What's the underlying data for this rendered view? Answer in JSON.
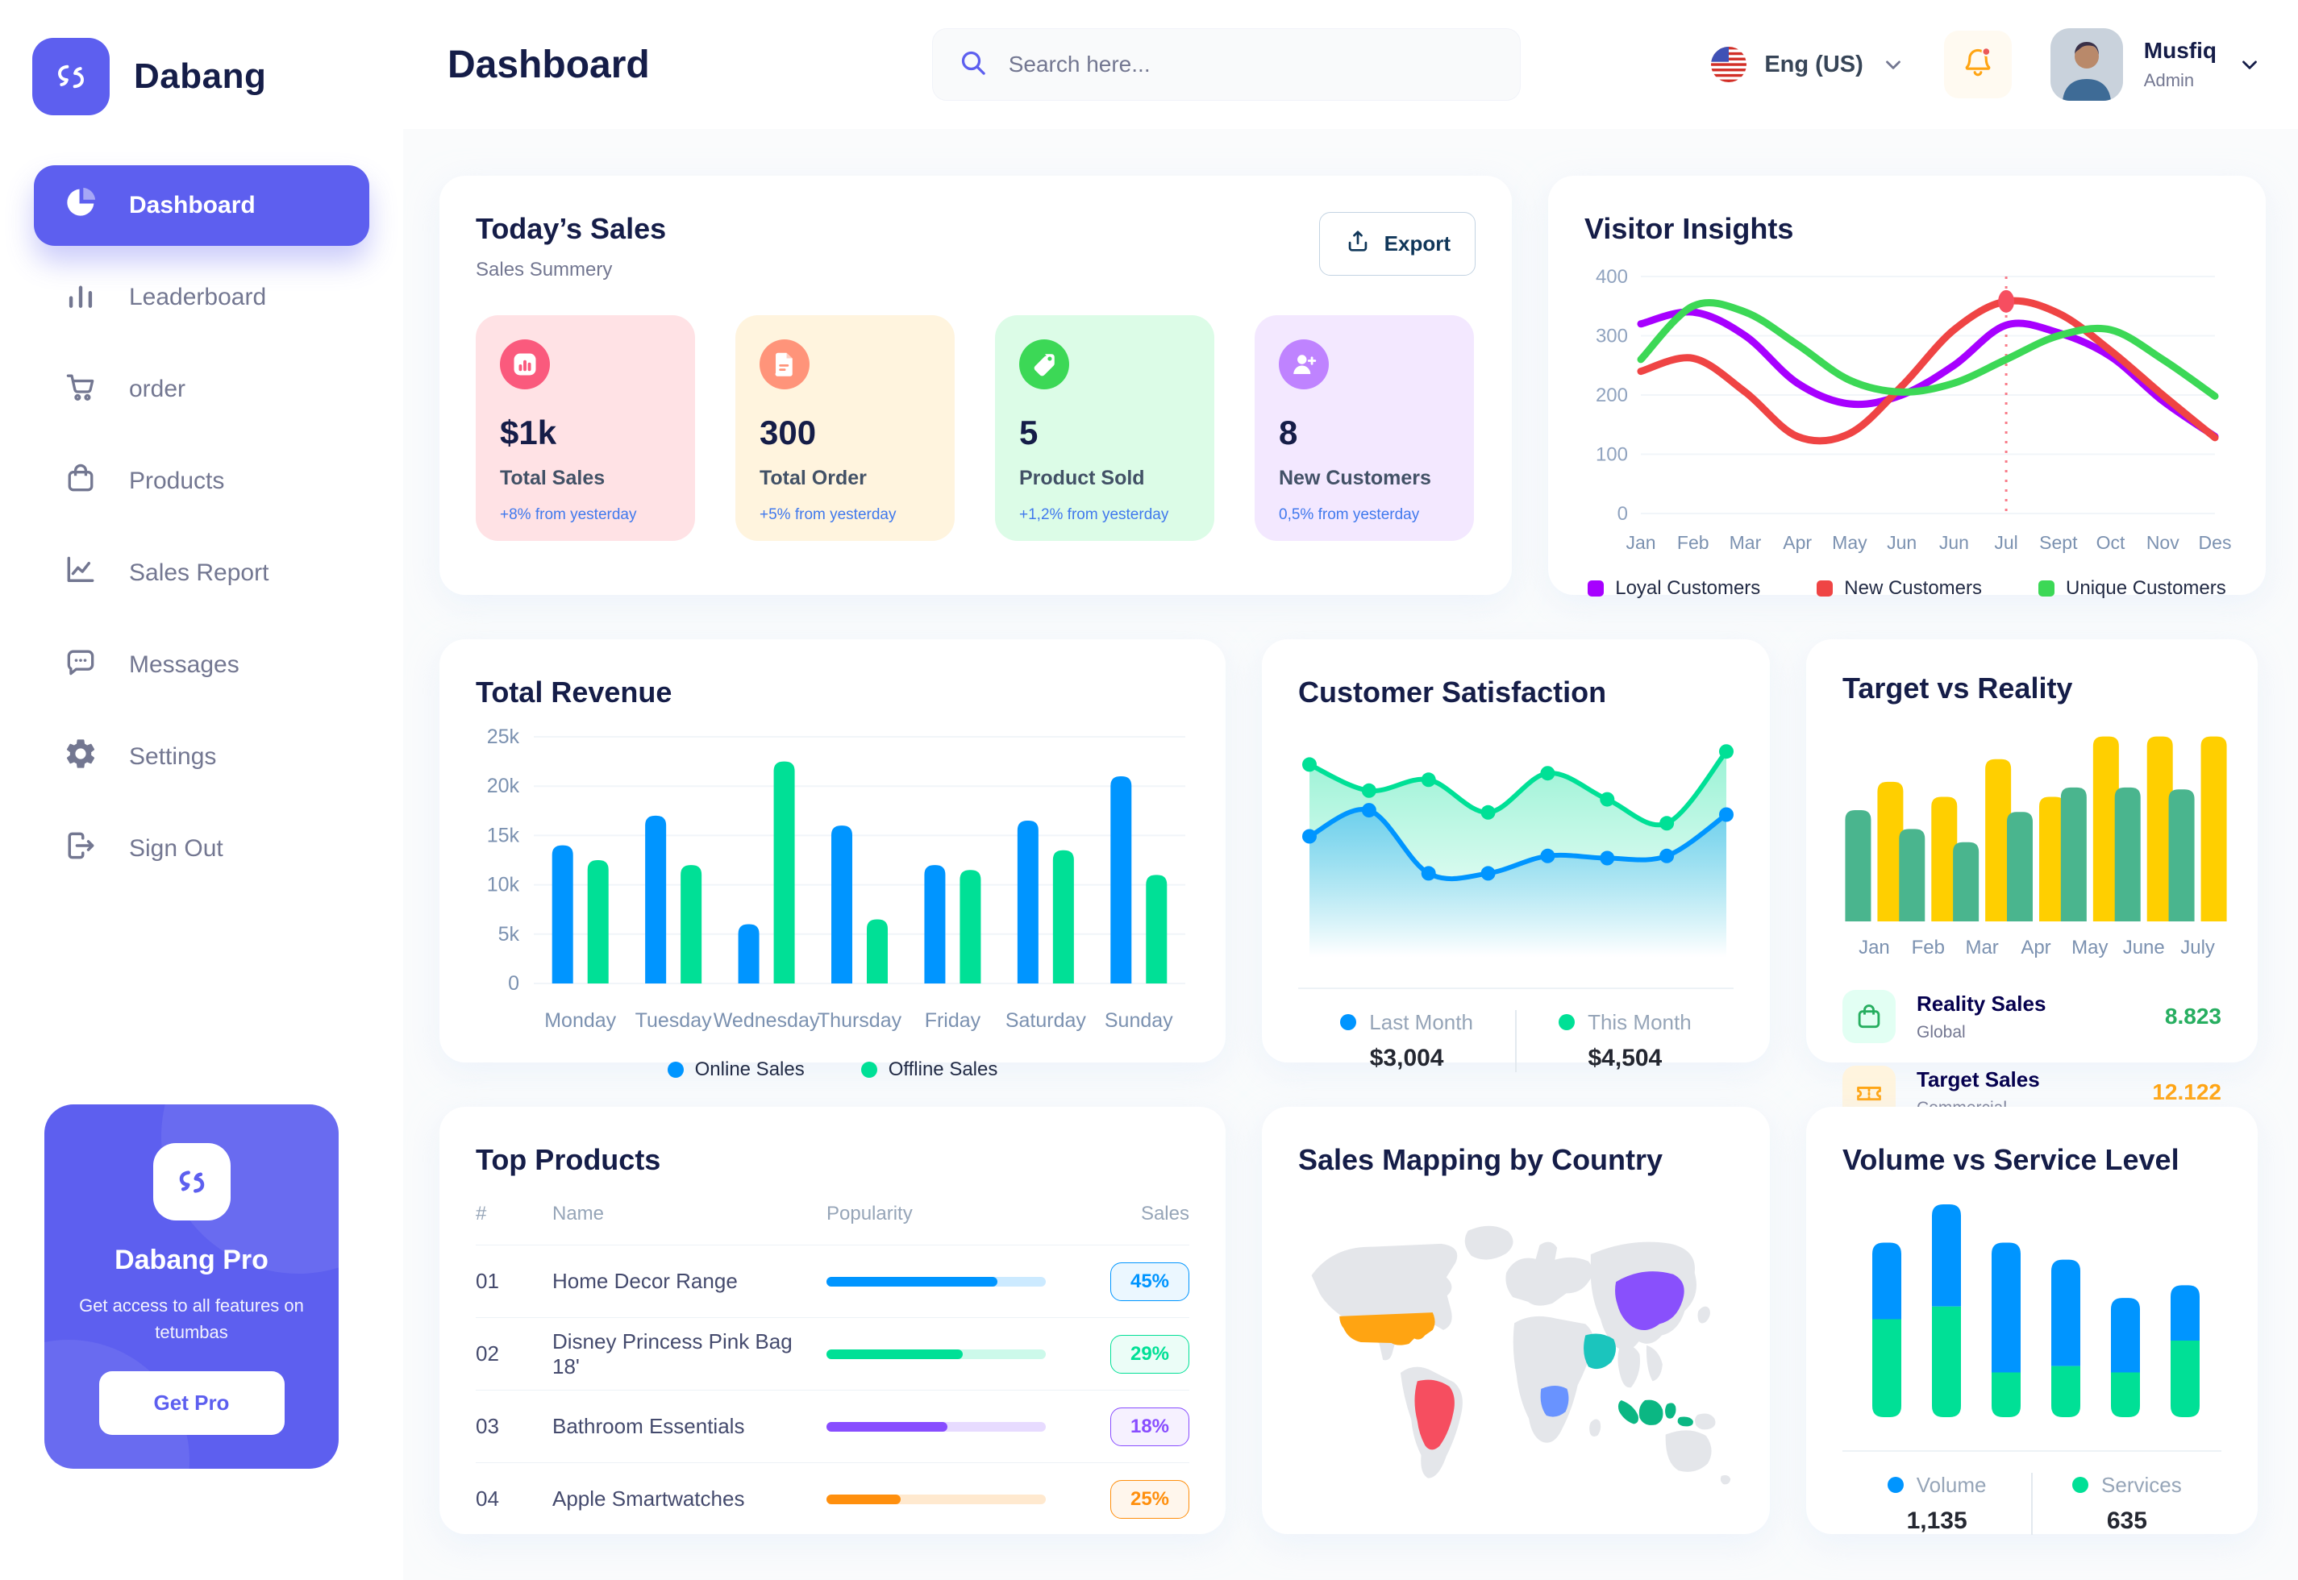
{
  "brand": {
    "name": "Dabang",
    "pro_title": "Dabang Pro",
    "pro_subtitle": "Get access to all features on tetumbas",
    "pro_cta": "Get Pro"
  },
  "header": {
    "title": "Dashboard",
    "search_placeholder": "Search here...",
    "language": "Eng (US)",
    "user_name": "Musfiq",
    "user_role": "Admin"
  },
  "sidebar": {
    "items": [
      {
        "label": "Dashboard",
        "icon": "dashboard",
        "active": true
      },
      {
        "label": "Leaderboard",
        "icon": "leaderboard",
        "active": false
      },
      {
        "label": "order",
        "icon": "cart",
        "active": false
      },
      {
        "label": "Products",
        "icon": "bag",
        "active": false
      },
      {
        "label": "Sales Report",
        "icon": "chart-line",
        "active": false
      },
      {
        "label": "Messages",
        "icon": "message",
        "active": false
      },
      {
        "label": "Settings",
        "icon": "gear",
        "active": false
      },
      {
        "label": "Sign Out",
        "icon": "signout",
        "active": false
      }
    ]
  },
  "today_sales": {
    "title": "Today’s Sales",
    "subtitle": "Sales Summery",
    "export_label": "Export",
    "cards": [
      {
        "value": "$1k",
        "label": "Total Sales",
        "delta": "+8% from yesterday",
        "bg": "#FFE2E5",
        "icon_bg": "#FA5A7D",
        "icon": "bar"
      },
      {
        "value": "300",
        "label": "Total Order",
        "delta": "+5% from yesterday",
        "bg": "#FFF4DE",
        "icon_bg": "#FF947A",
        "icon": "file"
      },
      {
        "value": "5",
        "label": "Product Sold",
        "delta": "+1,2% from yesterday",
        "bg": "#DCFCE7",
        "icon_bg": "#3CD856",
        "icon": "tag"
      },
      {
        "value": "8",
        "label": "New Customers",
        "delta": "0,5% from yesterday",
        "bg": "#F3E8FF",
        "icon_bg": "#BF83FF",
        "icon": "person"
      }
    ]
  },
  "chart_data": {
    "visitor_insights": {
      "type": "line",
      "title": "Visitor Insights",
      "x": [
        "Jan",
        "Feb",
        "Mar",
        "Apr",
        "May",
        "Jun",
        "Jun",
        "Jul",
        "Sept",
        "Oct",
        "Nov",
        "Des"
      ],
      "ylim": [
        0,
        400
      ],
      "yticks": [
        0,
        100,
        200,
        300,
        400
      ],
      "series": [
        {
          "name": "Loyal Customers",
          "color": "#A700FF",
          "values": [
            320,
            340,
            300,
            220,
            185,
            200,
            250,
            318,
            305,
            265,
            190,
            130
          ]
        },
        {
          "name": "New Customers",
          "color": "#EF4444",
          "values": [
            240,
            262,
            205,
            130,
            135,
            215,
            310,
            358,
            338,
            275,
            200,
            128
          ]
        },
        {
          "name": "Unique Customers",
          "color": "#3CD856",
          "values": [
            260,
            350,
            340,
            285,
            225,
            205,
            220,
            260,
            300,
            310,
            260,
            198
          ]
        }
      ],
      "marker": {
        "series": "New Customers",
        "index": 7,
        "color": "#F64E60"
      }
    },
    "total_revenue": {
      "type": "bar",
      "title": "Total Revenue",
      "categories": [
        "Monday",
        "Tuesday",
        "Wednesday",
        "Thursday",
        "Friday",
        "Saturday",
        "Sunday"
      ],
      "ylim": [
        0,
        25000
      ],
      "yticks": [
        "0",
        "5k",
        "10k",
        "15k",
        "20k",
        "25k"
      ],
      "series": [
        {
          "name": "Online Sales",
          "color": "#0095FF",
          "values": [
            14000,
            17000,
            6000,
            16000,
            12000,
            16500,
            21000
          ]
        },
        {
          "name": "Offline Sales",
          "color": "#00E096",
          "values": [
            12500,
            12000,
            22500,
            6500,
            11500,
            13500,
            11000
          ]
        }
      ]
    },
    "customer_satisfaction": {
      "type": "area",
      "title": "Customer Satisfaction",
      "ylim": [
        0,
        100
      ],
      "series": [
        {
          "name": "Last Month",
          "color": "#0095FF",
          "total": "$3,004",
          "values": [
            55,
            67,
            38,
            38,
            46,
            45,
            46,
            65
          ]
        },
        {
          "name": "This Month",
          "color": "#00E096",
          "total": "$4,504",
          "values": [
            88,
            76,
            81,
            66,
            84,
            72,
            61,
            94
          ]
        }
      ]
    },
    "target_vs_reality": {
      "type": "bar",
      "title": "Target vs Reality",
      "categories": [
        "Jan",
        "Feb",
        "Mar",
        "Apr",
        "May",
        "June",
        "July"
      ],
      "ylim": [
        0,
        10
      ],
      "series": [
        {
          "name": "Reality Sales",
          "tagline": "Global",
          "color": "#4AB58E",
          "value_label": "8.823",
          "value_color": "#27AE60",
          "icon_bg": "#E2FFF3",
          "icon": "bag",
          "values": [
            5.9,
            4.9,
            4.2,
            5.8,
            7.1,
            7.1,
            7.0
          ]
        },
        {
          "name": "Target Sales",
          "tagline": "Commercial",
          "color": "#FFCF00",
          "value_label": "12.122",
          "value_color": "#FFA412",
          "icon_bg": "#FFF4DE",
          "icon": "ticket",
          "values": [
            7.4,
            6.6,
            8.6,
            6.6,
            9.8,
            9.8,
            9.8
          ]
        }
      ]
    },
    "top_products": {
      "type": "table",
      "title": "Top Products",
      "headers": [
        "#",
        "Name",
        "Popularity",
        "Sales"
      ],
      "rows": [
        {
          "num": "01",
          "name": "Home Decor Range",
          "popularity": 78,
          "sales": "45%",
          "color": "#0095FF"
        },
        {
          "num": "02",
          "name": "Disney Princess Pink Bag 18'",
          "popularity": 62,
          "sales": "29%",
          "color": "#00E096"
        },
        {
          "num": "03",
          "name": "Bathroom Essentials",
          "popularity": 55,
          "sales": "18%",
          "color": "#884DFF"
        },
        {
          "num": "04",
          "name": "Apple Smartwatches",
          "popularity": 34,
          "sales": "25%",
          "color": "#FF8F0D"
        }
      ]
    },
    "sales_mapping": {
      "type": "map",
      "title": "Sales Mapping by Country",
      "countries": [
        {
          "name": "United States",
          "color": "#FFA412"
        },
        {
          "name": "Brazil",
          "color": "#F64E60"
        },
        {
          "name": "DR Congo",
          "color": "#6993FF"
        },
        {
          "name": "Saudi Arabia",
          "color": "#1BC5BD"
        },
        {
          "name": "China",
          "color": "#8950FC"
        },
        {
          "name": "Indonesia",
          "color": "#0BB783"
        }
      ]
    },
    "volume_vs_service": {
      "type": "stacked-bar",
      "title": "Volume vs Service Level",
      "ylim": [
        0,
        10
      ],
      "series": [
        {
          "name": "Volume",
          "color": "#0095FF",
          "total": "1,135",
          "values": [
            3.6,
            4.8,
            6.1,
            5.0,
            3.5,
            2.6
          ]
        },
        {
          "name": "Services",
          "color": "#00E096",
          "total": "635",
          "values": [
            4.6,
            5.2,
            2.1,
            2.4,
            2.1,
            3.6
          ]
        }
      ]
    }
  }
}
